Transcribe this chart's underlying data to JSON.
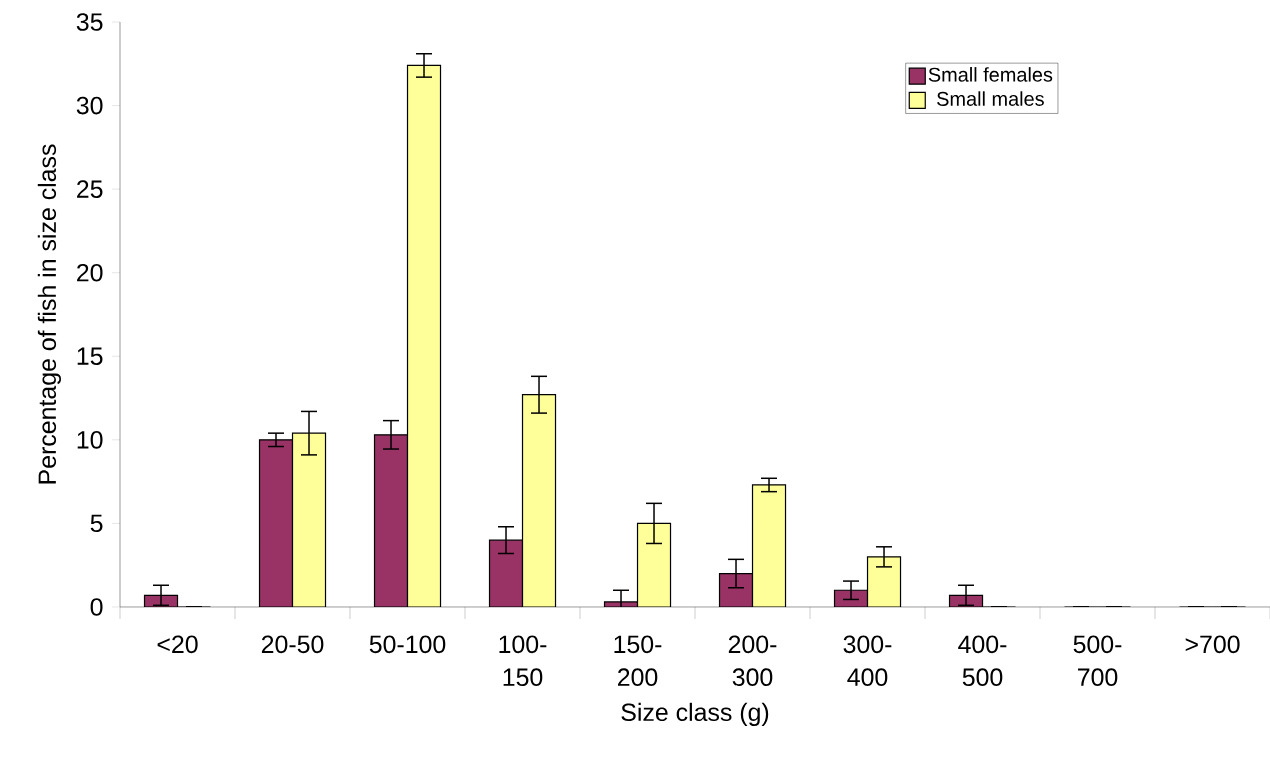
{
  "chart_data": {
    "type": "bar",
    "xlabel": "Size class (g)",
    "ylabel": "Percentage of fish in size class",
    "categories": [
      "<20",
      "20-50",
      "50-100",
      "100-150",
      "150-200",
      "200-300",
      "300-400",
      "400-500",
      "500-700",
      ">700"
    ],
    "series": [
      {
        "name": "Small females",
        "color": "#993366",
        "values": [
          0.7,
          10.0,
          10.3,
          4.0,
          0.3,
          2.0,
          1.0,
          0.7,
          0,
          0
        ],
        "errors": [
          0.6,
          0.4,
          0.85,
          0.8,
          0.7,
          0.85,
          0.55,
          0.6,
          0,
          0
        ]
      },
      {
        "name": "Small males",
        "color": "#ffff99",
        "values": [
          0,
          10.4,
          32.4,
          12.7,
          5.0,
          7.3,
          3.0,
          0,
          0,
          0
        ],
        "errors": [
          0,
          1.3,
          0.7,
          1.1,
          1.2,
          0.4,
          0.6,
          0,
          0,
          0
        ]
      }
    ],
    "ylim": [
      0,
      35
    ],
    "yticks": [
      0,
      5,
      10,
      15,
      20,
      25,
      30,
      35
    ],
    "legend": "top right"
  }
}
